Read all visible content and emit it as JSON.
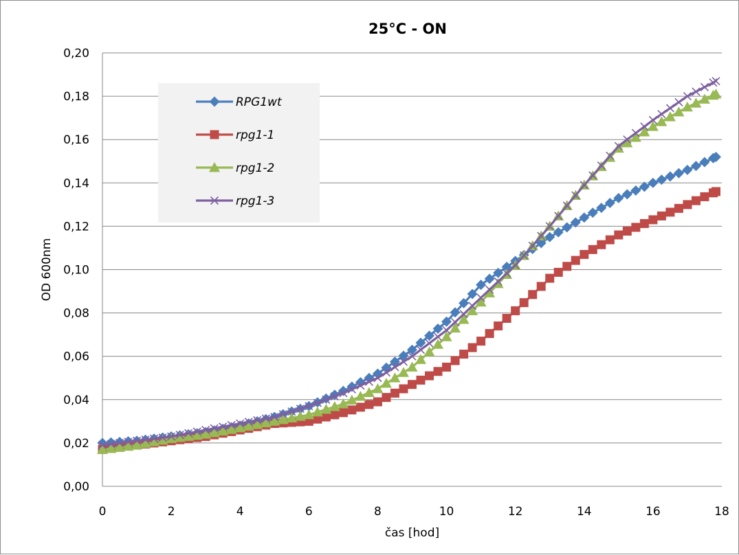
{
  "chart_data": {
    "type": "line",
    "title": "25°C - ON",
    "xlabel": "čas [hod]",
    "ylabel": "OD 600nm",
    "xlim": [
      0,
      18
    ],
    "ylim": [
      0,
      0.2
    ],
    "xticks": [
      "0",
      "2",
      "4",
      "6",
      "8",
      "10",
      "12",
      "14",
      "16",
      "18"
    ],
    "yticks": [
      "0,00",
      "0,02",
      "0,04",
      "0,06",
      "0,08",
      "0,10",
      "0,12",
      "0,14",
      "0,16",
      "0,18",
      "0,20"
    ],
    "grid": "horizontal",
    "legend_position": "upper-left",
    "x": [
      0,
      1,
      2,
      3,
      4,
      5,
      6,
      7,
      8,
      9,
      10,
      11,
      12,
      13,
      14,
      15,
      16,
      17,
      17.83
    ],
    "series": [
      {
        "name": "RPG1wt",
        "color": "#4a7ebb",
        "marker": "diamond",
        "values": [
          0.02,
          0.021,
          0.023,
          0.025,
          0.028,
          0.032,
          0.037,
          0.044,
          0.052,
          0.063,
          0.076,
          0.093,
          0.104,
          0.115,
          0.124,
          0.133,
          0.14,
          0.146,
          0.152
        ]
      },
      {
        "name": "rpg1-1",
        "color": "#be4b48",
        "marker": "square",
        "values": [
          0.017,
          0.019,
          0.021,
          0.023,
          0.026,
          0.029,
          0.03,
          0.034,
          0.039,
          0.047,
          0.055,
          0.067,
          0.081,
          0.096,
          0.107,
          0.116,
          0.123,
          0.13,
          0.136
        ]
      },
      {
        "name": "rpg1-2",
        "color": "#98b954",
        "marker": "triangle",
        "values": [
          0.017,
          0.019,
          0.022,
          0.024,
          0.027,
          0.03,
          0.033,
          0.038,
          0.045,
          0.055,
          0.069,
          0.085,
          0.102,
          0.12,
          0.139,
          0.156,
          0.166,
          0.175,
          0.181
        ]
      },
      {
        "name": "rpg1-3",
        "color": "#7d60a0",
        "marker": "x",
        "values": [
          0.019,
          0.021,
          0.023,
          0.026,
          0.029,
          0.032,
          0.037,
          0.043,
          0.05,
          0.06,
          0.072,
          0.087,
          0.102,
          0.12,
          0.139,
          0.157,
          0.169,
          0.18,
          0.187
        ]
      }
    ]
  }
}
